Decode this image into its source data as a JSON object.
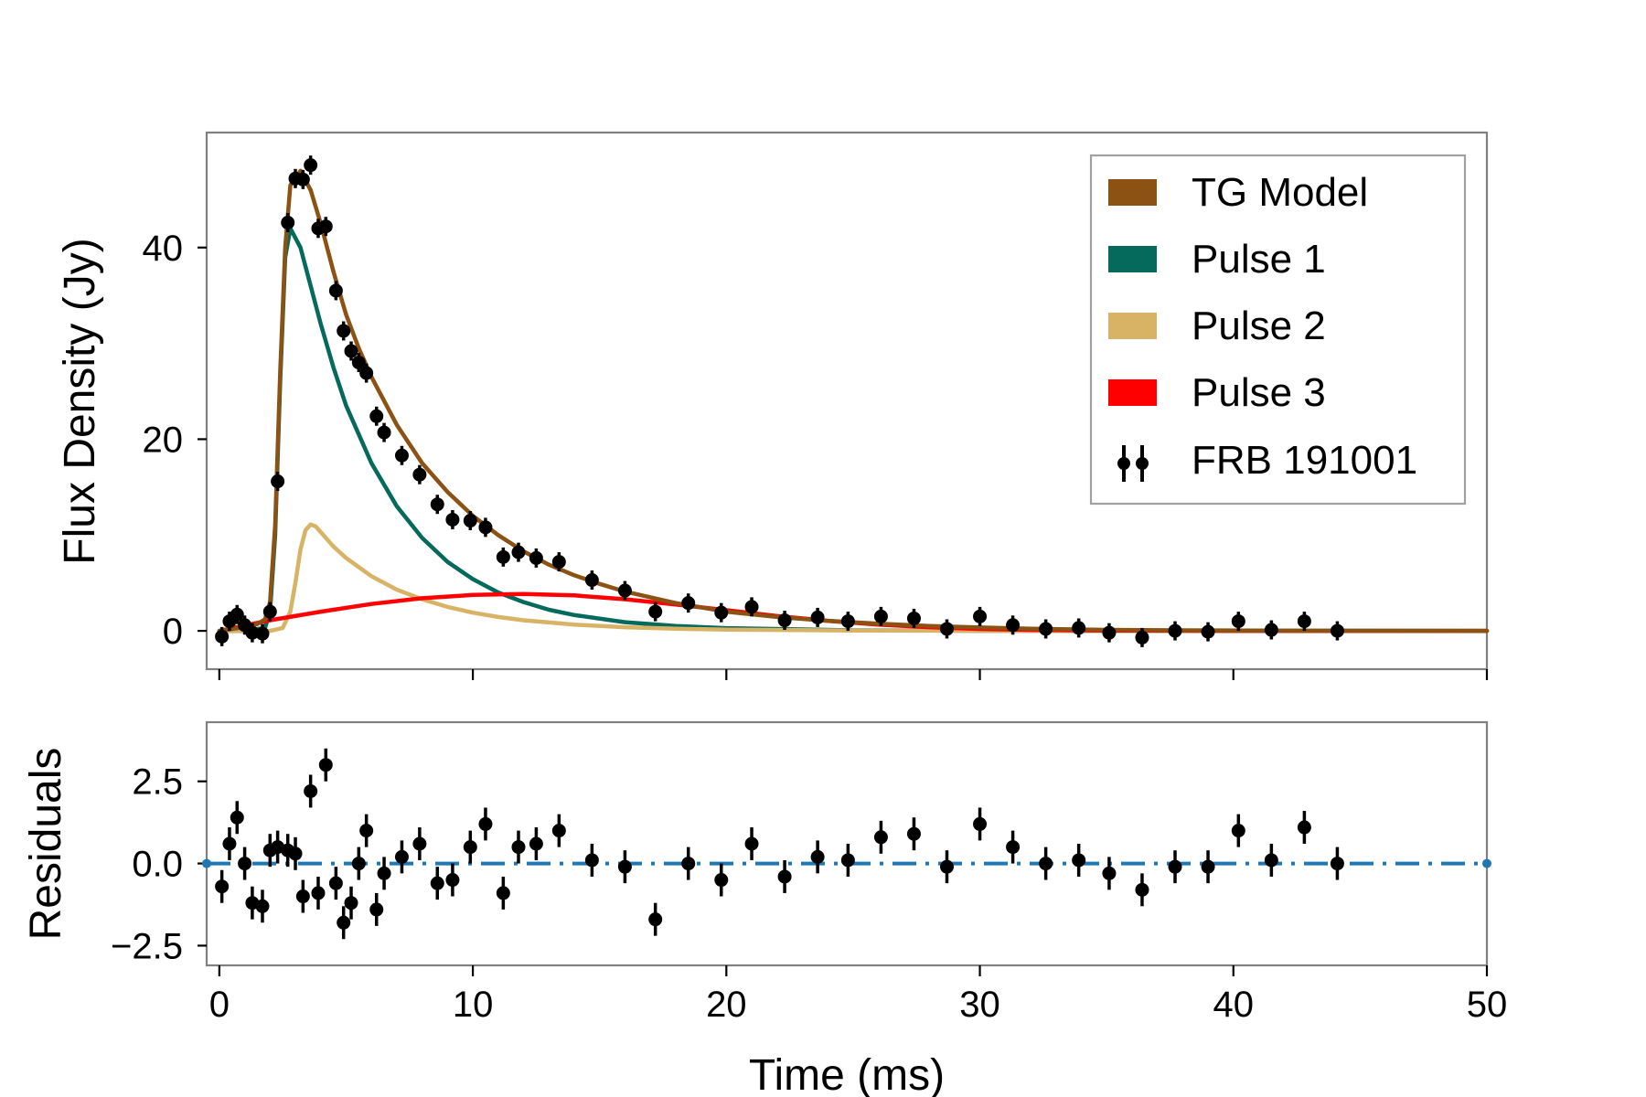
{
  "chart_data": [
    {
      "type": "line",
      "panel": "main",
      "xlabel": "Time (ms)",
      "ylabel": "Flux Density (Jy)",
      "xlim": [
        -0.5,
        50
      ],
      "ylim": [
        -4,
        52
      ],
      "xticks": [
        0,
        10,
        20,
        30,
        40,
        50
      ],
      "yticks": [
        0,
        20,
        40
      ],
      "legend_position": "top-right",
      "legend": [
        {
          "label": "TG Model",
          "color": "#8b5213",
          "kind": "patch"
        },
        {
          "label": "Pulse 1",
          "color": "#05695c",
          "kind": "patch"
        },
        {
          "label": "Pulse 2",
          "color": "#d8b365",
          "kind": "patch"
        },
        {
          "label": "Pulse 3",
          "color": "#ff0000",
          "kind": "patch"
        },
        {
          "label": "FRB 191001",
          "color": "#000000",
          "kind": "errorbar"
        }
      ],
      "series": [
        {
          "name": "TG Model",
          "color": "#8b5213",
          "x": [
            0,
            1,
            1.5,
            1.8,
            2.0,
            2.2,
            2.4,
            2.6,
            2.8,
            3.2,
            3.6,
            4.0,
            4.5,
            5.0,
            5.5,
            6,
            7,
            8,
            9,
            10,
            11,
            12,
            13,
            14,
            15,
            16,
            18,
            20,
            22,
            24,
            26,
            28,
            30,
            32,
            35,
            38,
            42,
            46,
            50
          ],
          "y": [
            0,
            0.4,
            0.7,
            1.2,
            3,
            11,
            27,
            40,
            46.5,
            48,
            46,
            42.5,
            37.5,
            33,
            29.5,
            26.5,
            21.5,
            17.5,
            14.5,
            12,
            10,
            8.3,
            6.9,
            5.8,
            4.9,
            4.1,
            2.9,
            2.0,
            1.45,
            1.05,
            0.75,
            0.5,
            0.35,
            0.22,
            0.1,
            0.05,
            0.02,
            0.01,
            0
          ]
        },
        {
          "name": "Pulse 1",
          "color": "#05695c",
          "x": [
            0,
            1,
            1.8,
            2.0,
            2.2,
            2.4,
            2.6,
            2.8,
            3.2,
            3.6,
            4.0,
            4.5,
            5.0,
            6,
            7,
            8,
            9,
            10,
            11,
            12,
            13,
            14,
            16,
            18,
            20,
            25,
            30,
            35,
            40,
            50
          ],
          "y": [
            0,
            0,
            0.3,
            2,
            10,
            26,
            39,
            42,
            40,
            36,
            32,
            27.5,
            23.5,
            17.5,
            13,
            9.7,
            7.2,
            5.4,
            4.0,
            3.0,
            2.2,
            1.65,
            0.9,
            0.5,
            0.28,
            0.05,
            0.01,
            0,
            0,
            0
          ]
        },
        {
          "name": "Pulse 2",
          "color": "#d8b365",
          "x": [
            0,
            2.0,
            2.5,
            2.8,
            3.0,
            3.2,
            3.4,
            3.6,
            3.8,
            4.0,
            4.5,
            5,
            6,
            7,
            8,
            9,
            10,
            11,
            12,
            14,
            16,
            18,
            20,
            25,
            30,
            35,
            40,
            50
          ],
          "y": [
            0,
            0,
            0.3,
            2,
            5,
            8.5,
            10.5,
            11.1,
            10.9,
            10.3,
            8.8,
            7.6,
            5.7,
            4.3,
            3.3,
            2.5,
            1.9,
            1.45,
            1.1,
            0.65,
            0.38,
            0.22,
            0.13,
            0.04,
            0.01,
            0,
            0,
            0
          ]
        },
        {
          "name": "Pulse 3",
          "color": "#ff0000",
          "x": [
            0,
            2,
            4,
            6,
            8,
            10,
            12,
            14,
            16,
            18,
            20,
            22,
            24,
            26,
            28,
            30,
            32,
            35,
            40,
            45,
            50
          ],
          "y": [
            0,
            1.1,
            2.0,
            2.8,
            3.4,
            3.75,
            3.85,
            3.7,
            3.3,
            2.75,
            2.15,
            1.55,
            1.05,
            0.65,
            0.38,
            0.2,
            0.1,
            0.03,
            0,
            0,
            0
          ]
        }
      ],
      "points": {
        "name": "FRB 191001",
        "x": [
          0.1,
          0.4,
          0.7,
          1.0,
          1.3,
          1.7,
          2.0,
          2.3,
          2.7,
          3.0,
          3.3,
          3.6,
          3.9,
          4.2,
          4.6,
          4.9,
          5.2,
          5.5,
          5.8,
          6.2,
          6.5,
          7.2,
          7.9,
          8.6,
          9.2,
          9.9,
          10.5,
          11.2,
          11.8,
          12.5,
          13.4,
          14.7,
          16.0,
          17.2,
          18.5,
          19.8,
          21.0,
          22.3,
          23.6,
          24.8,
          26.1,
          27.4,
          28.7,
          30.0,
          31.3,
          32.6,
          33.9,
          35.1,
          36.4,
          37.7,
          39.0,
          40.2,
          41.5,
          42.8,
          44.1
        ],
        "y": [
          -0.6,
          1.0,
          1.7,
          0.6,
          -0.2,
          -0.3,
          2.0,
          15.6,
          42.6,
          47.2,
          47.1,
          48.6,
          42.0,
          42.2,
          35.5,
          31.3,
          29.2,
          28.0,
          26.9,
          22.4,
          20.7,
          18.3,
          16.3,
          13.2,
          11.6,
          11.5,
          10.8,
          7.7,
          8.2,
          7.6,
          7.2,
          5.3,
          4.2,
          2.0,
          2.9,
          1.9,
          2.5,
          1.1,
          1.4,
          1.0,
          1.5,
          1.3,
          0.2,
          1.5,
          0.6,
          0.2,
          0.3,
          -0.2,
          -0.7,
          0.0,
          -0.1,
          1.0,
          0.1,
          1.0,
          0.0
        ],
        "yerr": [
          1.0,
          1.0,
          1.0,
          1.0,
          1.0,
          1.0,
          1.0,
          1.0,
          1.0,
          1.0,
          1.0,
          1.0,
          1.0,
          1.0,
          1.0,
          1.0,
          1.0,
          1.0,
          1.0,
          1.0,
          1.0,
          1.0,
          1.0,
          1.0,
          1.0,
          1.0,
          1.0,
          1.0,
          1.0,
          1.0,
          1.0,
          1.0,
          1.0,
          1.0,
          1.0,
          1.0,
          1.0,
          1.0,
          1.0,
          1.0,
          1.0,
          1.0,
          1.0,
          1.0,
          1.0,
          1.0,
          1.0,
          1.0,
          1.0,
          1.0,
          1.0,
          1.0,
          1.0,
          1.0,
          1.0
        ]
      }
    },
    {
      "type": "scatter",
      "panel": "residuals",
      "xlabel": "Time (ms)",
      "ylabel": "Residuals",
      "xlim": [
        -0.5,
        50
      ],
      "ylim": [
        -3.1,
        4.3
      ],
      "xticks": [
        0,
        10,
        20,
        30,
        40,
        50
      ],
      "yticks": [
        -2.5,
        0.0,
        2.5
      ],
      "ytick_labels": [
        "−2.5",
        "0.0",
        "2.5"
      ],
      "xtick_labels": [
        "0",
        "10",
        "20",
        "30",
        "40",
        "50"
      ],
      "zero_line": {
        "y": 0,
        "color": "#1f77b4",
        "style": "dash-dot"
      },
      "points": {
        "x": [
          0.1,
          0.4,
          0.7,
          1.0,
          1.3,
          1.7,
          2.0,
          2.3,
          2.7,
          3.0,
          3.3,
          3.6,
          3.9,
          4.2,
          4.6,
          4.9,
          5.2,
          5.5,
          5.8,
          6.2,
          6.5,
          7.2,
          7.9,
          8.6,
          9.2,
          9.9,
          10.5,
          11.2,
          11.8,
          12.5,
          13.4,
          14.7,
          16.0,
          17.2,
          18.5,
          19.8,
          21.0,
          22.3,
          23.6,
          24.8,
          26.1,
          27.4,
          28.7,
          30.0,
          31.3,
          32.6,
          33.9,
          35.1,
          36.4,
          37.7,
          39.0,
          40.2,
          41.5,
          42.8,
          44.1
        ],
        "y": [
          -0.7,
          0.6,
          1.4,
          0.0,
          -1.2,
          -1.3,
          0.4,
          0.5,
          0.4,
          0.3,
          -1.0,
          2.2,
          -0.9,
          3.0,
          -0.6,
          -1.8,
          -1.2,
          0.0,
          1.0,
          -1.4,
          -0.3,
          0.2,
          0.6,
          -0.6,
          -0.5,
          0.5,
          1.2,
          -0.9,
          0.5,
          0.6,
          1.0,
          0.1,
          -0.1,
          -1.7,
          0.0,
          -0.5,
          0.6,
          -0.4,
          0.2,
          0.1,
          0.8,
          0.9,
          -0.1,
          1.2,
          0.5,
          0.0,
          0.1,
          -0.3,
          -0.8,
          -0.1,
          -0.1,
          1.0,
          0.1,
          1.1,
          0.0
        ],
        "yerr": [
          0.5,
          0.5,
          0.5,
          0.5,
          0.5,
          0.5,
          0.5,
          0.5,
          0.5,
          0.5,
          0.5,
          0.5,
          0.5,
          0.5,
          0.5,
          0.5,
          0.5,
          0.5,
          0.5,
          0.5,
          0.5,
          0.5,
          0.5,
          0.5,
          0.5,
          0.5,
          0.5,
          0.5,
          0.5,
          0.5,
          0.5,
          0.5,
          0.5,
          0.5,
          0.5,
          0.5,
          0.5,
          0.5,
          0.5,
          0.5,
          0.5,
          0.5,
          0.5,
          0.5,
          0.5,
          0.5,
          0.5,
          0.5,
          0.5,
          0.5,
          0.5,
          0.5,
          0.5,
          0.5,
          0.5
        ]
      }
    }
  ]
}
